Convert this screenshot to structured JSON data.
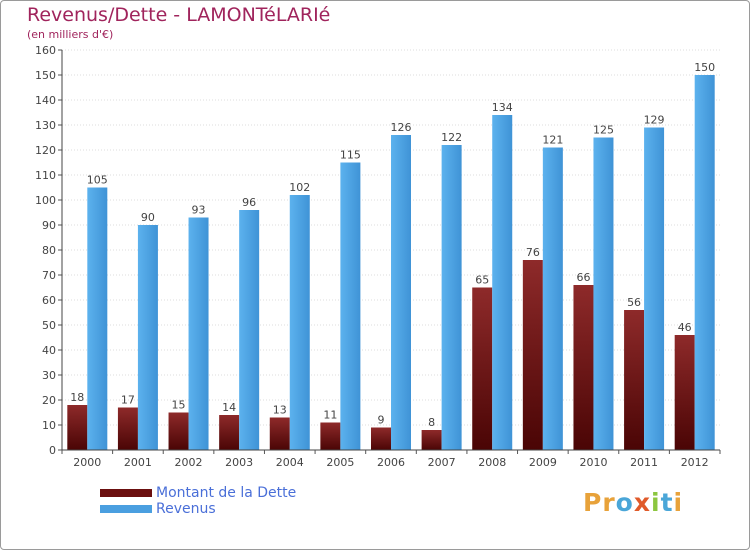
{
  "header": {
    "title": "Revenus/Dette - LAMONTéLARIé",
    "subtitle": "(en milliers d'€)"
  },
  "chart_data": {
    "type": "bar",
    "title": "Revenus/Dette - LAMONTéLARIé",
    "subtitle": "(en milliers d'€)",
    "categories": [
      "2000",
      "2001",
      "2002",
      "2003",
      "2004",
      "2005",
      "2006",
      "2007",
      "2008",
      "2009",
      "2010",
      "2011",
      "2012"
    ],
    "series": [
      {
        "name": "Montant de la Dette",
        "values": [
          18,
          17,
          15,
          14,
          13,
          11,
          9,
          8,
          65,
          76,
          66,
          56,
          46
        ],
        "color": "#7a1a1a"
      },
      {
        "name": "Revenus",
        "values": [
          105,
          90,
          93,
          96,
          102,
          115,
          126,
          122,
          134,
          121,
          125,
          129,
          150
        ],
        "color": "#4a9fe0"
      }
    ],
    "ylim": [
      0,
      160
    ],
    "ytick_step": 10,
    "grid": true,
    "legend": "bottom-left"
  },
  "legend": {
    "items": [
      {
        "label": "Montant de la Dette",
        "color": "#6b0f0f"
      },
      {
        "label": "Revenus",
        "color": "#4a9fe0"
      }
    ]
  },
  "logo": {
    "text": "Proxiti",
    "letters": [
      {
        "ch": "P",
        "color": "#e8a23a"
      },
      {
        "ch": "r",
        "color": "#e8a23a"
      },
      {
        "ch": "o",
        "color": "#4aa6d8"
      },
      {
        "ch": "x",
        "color": "#e05a2a"
      },
      {
        "ch": "i",
        "color": "#8cc63f"
      },
      {
        "ch": "t",
        "color": "#4aa6d8"
      },
      {
        "ch": "i",
        "color": "#e8a23a"
      }
    ]
  }
}
